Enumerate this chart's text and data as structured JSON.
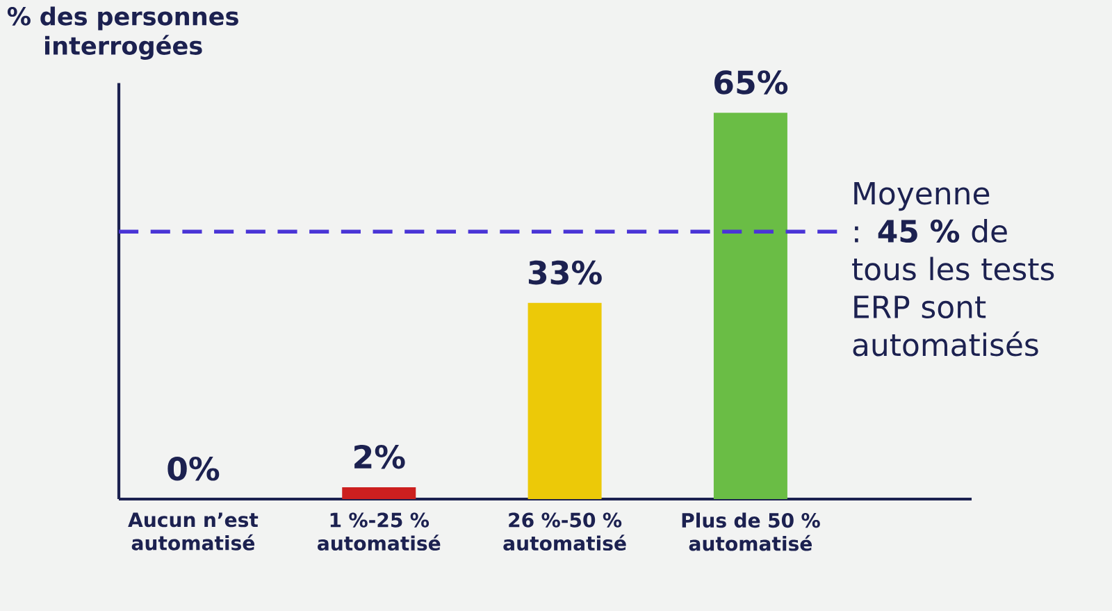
{
  "chart_data": {
    "type": "bar",
    "ylabel": "% des personnes interrogées",
    "categories": [
      "Aucun n’est automatisé",
      "1 %-25 % automatisé",
      "26 %-50 % automatisé",
      "Plus de 50 % automatisé"
    ],
    "values": [
      0,
      2,
      33,
      65
    ],
    "colors": [
      "#cc1f1f",
      "#cc1f1f",
      "#ecc908",
      "#6abd45"
    ],
    "value_labels": [
      "0%",
      "2%",
      "33%",
      "65%"
    ],
    "ylim": [
      0,
      70
    ],
    "ref_lines": [
      {
        "axis": "y",
        "value": 45,
        "label": "Moyenne : **45 %** de tous les tests ERP sont automatisés",
        "color": "#4a35d6",
        "line_style": "dashed"
      }
    ],
    "grid": false,
    "tick_labels": "x"
  }
}
